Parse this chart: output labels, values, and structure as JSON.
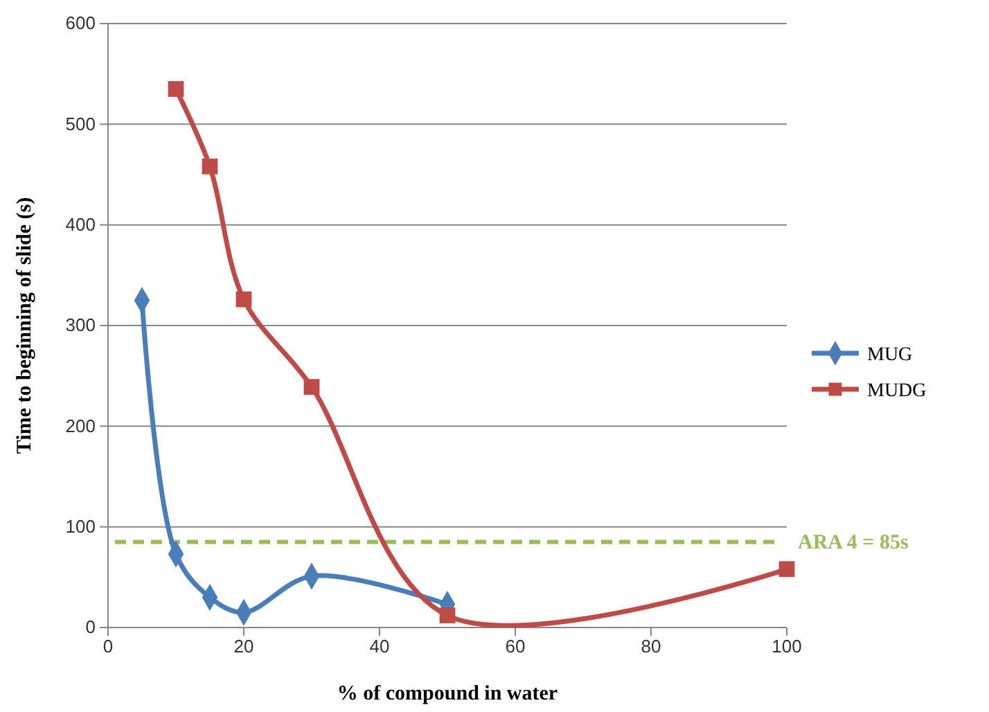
{
  "chart_data": {
    "type": "line",
    "xlabel": "% of compound in water",
    "ylabel": "Time to beginning of slide (s)",
    "xlim": [
      0,
      100
    ],
    "xticks": [
      0,
      20,
      40,
      60,
      80,
      100
    ],
    "ylim": [
      0,
      600
    ],
    "yticks": [
      0,
      100,
      200,
      300,
      400,
      500,
      600
    ],
    "grid": "y",
    "legend": "right",
    "line_style": "solid",
    "series": [
      {
        "name": "MUG",
        "color": "#4a7ebb",
        "marker": "diamond",
        "x": [
          5,
          10,
          15,
          20,
          30,
          50
        ],
        "values": [
          325,
          73,
          30,
          15,
          51,
          23
        ]
      },
      {
        "name": "MUDG",
        "color": "#be4b48",
        "marker": "square",
        "x": [
          10,
          15,
          20,
          30,
          50,
          100
        ],
        "values": [
          535,
          458,
          326,
          239,
          12,
          58
        ]
      }
    ],
    "ref_lines": [
      {
        "axis": "y",
        "value": 85,
        "label": "ARA 4 = 85s",
        "color": "#9bbb59",
        "line_style": "dashed"
      }
    ]
  }
}
